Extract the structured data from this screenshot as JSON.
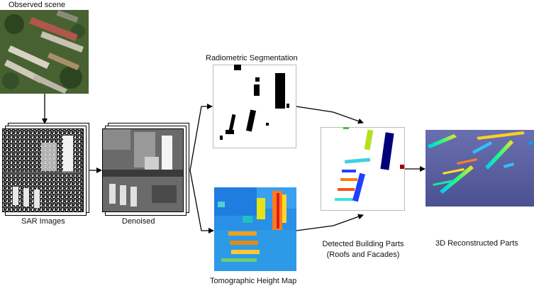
{
  "labels": {
    "observed": "Observed scene",
    "sar": "SAR Images",
    "denoised": "Denoised",
    "radiometric": "Radiometric Segmentation",
    "tomographic": "Tomographic Height Map",
    "detected_line1": "Detected Building Parts",
    "detected_line2": "(Roofs and Facades)",
    "reconstructed": "3D Reconstructed Parts"
  },
  "colors": {
    "arrow": "#000000",
    "aerial_base": "#3f5a2c",
    "tomo_base": "#2a8fe6",
    "recon_base": "#5a5f9e"
  }
}
